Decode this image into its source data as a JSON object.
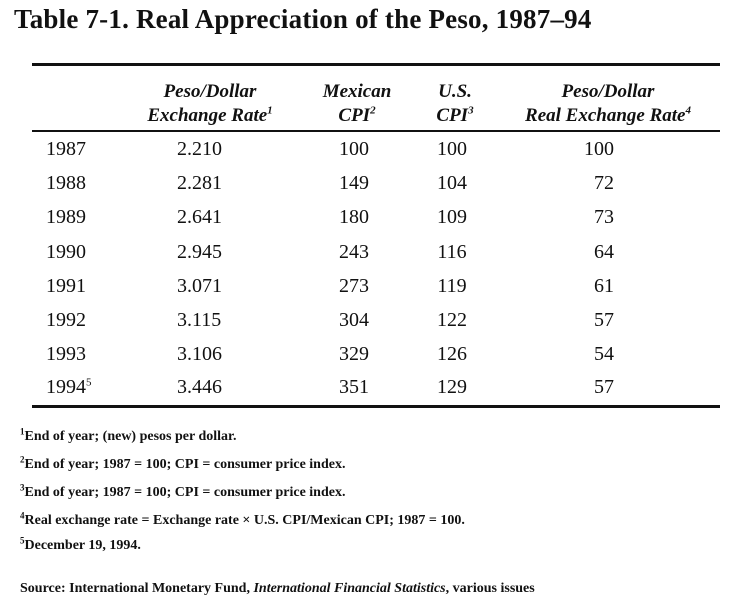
{
  "title": "Table 7-1. Real Appreciation of the Peso, 1987–94",
  "headers": [
    {
      "line1": "Peso/Dollar",
      "line2": "Exchange Rate",
      "mark": "1"
    },
    {
      "line1": "Mexican",
      "line2": "CPI",
      "mark": "2"
    },
    {
      "line1": "U.S.",
      "line2": "CPI",
      "mark": "3"
    },
    {
      "line1": "Peso/Dollar",
      "line2": "Real Exchange Rate",
      "mark": "4"
    }
  ],
  "rows": [
    {
      "year": "1987",
      "mark": "",
      "rate": "2.210",
      "mex_cpi": "100",
      "us_cpi": "100",
      "real_rate": "100"
    },
    {
      "year": "1988",
      "mark": "",
      "rate": "2.281",
      "mex_cpi": "149",
      "us_cpi": "104",
      "real_rate": "72"
    },
    {
      "year": "1989",
      "mark": "",
      "rate": "2.641",
      "mex_cpi": "180",
      "us_cpi": "109",
      "real_rate": "73"
    },
    {
      "year": "1990",
      "mark": "",
      "rate": "2.945",
      "mex_cpi": "243",
      "us_cpi": "116",
      "real_rate": "64"
    },
    {
      "year": "1991",
      "mark": "",
      "rate": "3.071",
      "mex_cpi": "273",
      "us_cpi": "119",
      "real_rate": "61"
    },
    {
      "year": "1992",
      "mark": "",
      "rate": "3.115",
      "mex_cpi": "304",
      "us_cpi": "122",
      "real_rate": "57"
    },
    {
      "year": "1993",
      "mark": "",
      "rate": "3.106",
      "mex_cpi": "329",
      "us_cpi": "126",
      "real_rate": "54"
    },
    {
      "year": "1994",
      "mark": "5",
      "rate": "3.446",
      "mex_cpi": "351",
      "us_cpi": "129",
      "real_rate": "57"
    }
  ],
  "footnotes": [
    {
      "mark": "1",
      "text": "End of year; (new) pesos per dollar."
    },
    {
      "mark": "2",
      "text": "End of year; 1987 = 100; CPI = consumer price index."
    },
    {
      "mark": "3",
      "text": "End of year; 1987 = 100; CPI = consumer price index."
    },
    {
      "mark": "4",
      "text": "Real exchange rate = Exchange rate × U.S. CPI/Mexican CPI; 1987 = 100."
    },
    {
      "mark": "5",
      "text": "December 19, 1994."
    }
  ],
  "source": {
    "prefix": "Source: International Monetary Fund, ",
    "publication": "International Financial Statistics",
    "suffix": ", various issues"
  }
}
